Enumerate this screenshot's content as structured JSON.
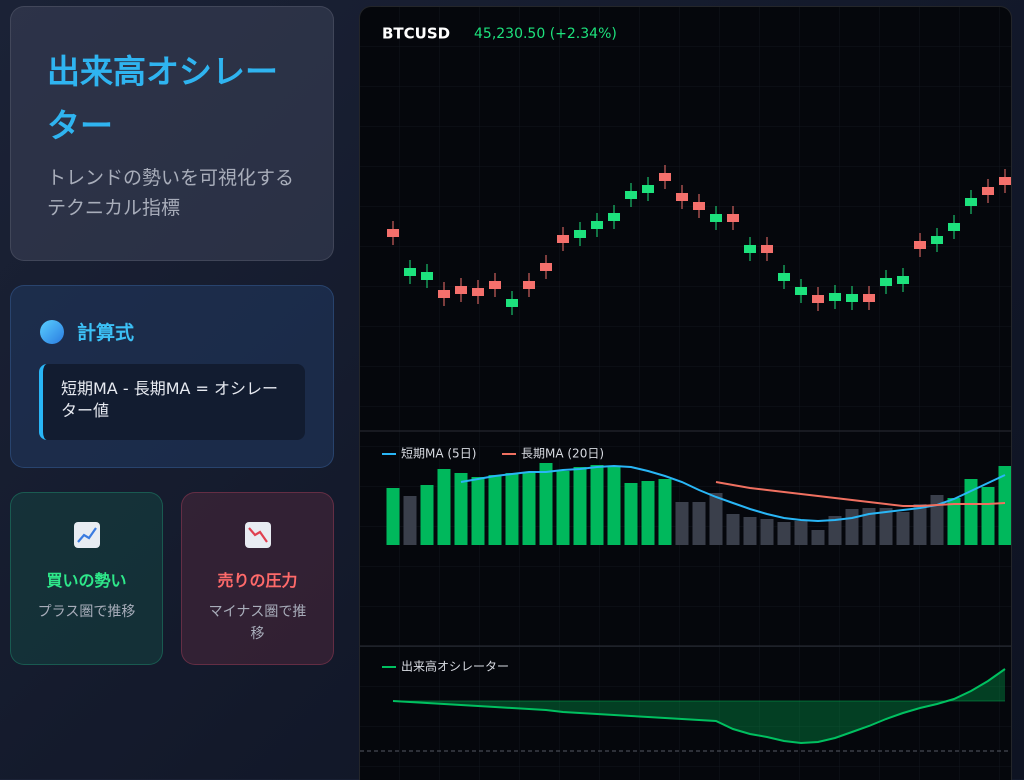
{
  "header": {
    "title": "出来高オシレーター",
    "subtitle": "トレンドの勢いを可視化するテクニカル指標"
  },
  "formula": {
    "title": "計算式",
    "text": "短期MA - 長期MA = オシレーター値"
  },
  "cards": [
    {
      "title": "買いの勢い",
      "text": "プラス圏で推移"
    },
    {
      "title": "売りの圧力",
      "text": "マイナス圏で推移"
    }
  ],
  "chart_data": {
    "type": "candlestick",
    "symbol": "BTCUSD",
    "price_label": "45,230.50 (+2.34%)",
    "ylim": [
      0,
      400
    ],
    "up_color": "#1de27d",
    "down_color": "#f4706c",
    "open": [
      202,
      155,
      151,
      141,
      145,
      143,
      150,
      124,
      150,
      168,
      196,
      193,
      202,
      210,
      232,
      238,
      258,
      238,
      229,
      209,
      217,
      178,
      186,
      150,
      136,
      136,
      130,
      129,
      137,
      145,
      147,
      190,
      187,
      200,
      225,
      244,
      254
    ],
    "close": [
      194,
      163,
      159,
      133,
      137,
      135,
      142,
      132,
      142,
      160,
      188,
      201,
      210,
      218,
      240,
      246,
      250,
      230,
      221,
      217,
      209,
      186,
      178,
      158,
      144,
      128,
      138,
      137,
      129,
      153,
      155,
      182,
      195,
      208,
      233,
      236,
      246
    ],
    "high": [
      210,
      171,
      167,
      149,
      153,
      151,
      158,
      140,
      158,
      176,
      204,
      209,
      218,
      226,
      248,
      254,
      266,
      246,
      237,
      225,
      225,
      194,
      194,
      166,
      152,
      144,
      146,
      145,
      145,
      161,
      163,
      198,
      203,
      216,
      241,
      252,
      262
    ],
    "low": [
      186,
      147,
      143,
      125,
      129,
      127,
      134,
      116,
      134,
      152,
      180,
      185,
      194,
      202,
      224,
      230,
      242,
      222,
      213,
      201,
      201,
      170,
      170,
      142,
      128,
      120,
      122,
      121,
      121,
      137,
      139,
      174,
      179,
      192,
      217,
      228,
      238
    ],
    "volume": {
      "ylim": [
        0,
        100
      ],
      "values": [
        57,
        49,
        60,
        76,
        72,
        68,
        70,
        72,
        72,
        82,
        74,
        78,
        80,
        78,
        62,
        64,
        66,
        43,
        43,
        52,
        31,
        28,
        26,
        23,
        24,
        15,
        29,
        36,
        37,
        37,
        33,
        41,
        50,
        47,
        66,
        58,
        79
      ],
      "colors": [
        "#00b85c",
        "#3a3f4b",
        "#00b85c",
        "#00b85c",
        "#00b85c",
        "#00b85c",
        "#00b85c",
        "#00b85c",
        "#00b85c",
        "#00b85c",
        "#00b85c",
        "#00b85c",
        "#00b85c",
        "#00b85c",
        "#00b85c",
        "#00b85c",
        "#00b85c",
        "#3a3f4b",
        "#3a3f4b",
        "#3a3f4b",
        "#3a3f4b",
        "#3a3f4b",
        "#3a3f4b",
        "#3a3f4b",
        "#3a3f4b",
        "#3a3f4b",
        "#3a3f4b",
        "#3a3f4b",
        "#3a3f4b",
        "#3a3f4b",
        "#3a3f4b",
        "#3a3f4b",
        "#3a3f4b",
        "#00b85c",
        "#00b85c",
        "#00b85c",
        "#00b85c"
      ]
    },
    "ma": {
      "series": [
        {
          "name": "短期MA (5日)",
          "color": "#29b6f6",
          "values": [
            null,
            null,
            null,
            null,
            63,
            66,
            69,
            71,
            73,
            73,
            75,
            76,
            78,
            79,
            78,
            74,
            69,
            63,
            55,
            48,
            42,
            36,
            31,
            27,
            25,
            24,
            25,
            27,
            31,
            33,
            35,
            37,
            40,
            46,
            54,
            62,
            70
          ]
        },
        {
          "name": "長期MA (20日)",
          "color": "#f07060",
          "values": [
            null,
            null,
            null,
            null,
            null,
            null,
            null,
            null,
            null,
            null,
            null,
            null,
            null,
            null,
            null,
            null,
            null,
            null,
            null,
            63,
            60,
            57,
            55,
            53,
            51,
            49,
            47,
            45,
            43,
            41,
            39,
            39,
            40,
            41,
            41,
            41,
            42
          ]
        }
      ]
    },
    "oscillator": {
      "name": "出来高オシレーター",
      "color": "#00c060",
      "ylim": [
        -80,
        80
      ],
      "threshold": -50,
      "values": [
        0,
        -1,
        -2,
        -3,
        -4,
        -5,
        -6,
        -7,
        -8,
        -9,
        -11,
        -12,
        -13,
        -14,
        -15,
        -16,
        -17,
        -18,
        -19,
        -20,
        -28,
        -33,
        -36,
        -40,
        -42,
        -41,
        -37,
        -31,
        -25,
        -18,
        -12,
        -7,
        -3,
        2,
        10,
        20,
        32
      ]
    }
  }
}
